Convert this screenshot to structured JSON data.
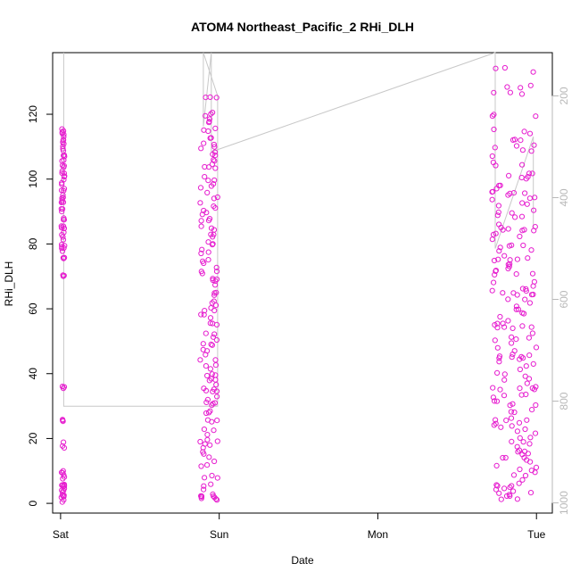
{
  "chart_data": {
    "type": "scatter",
    "title": "ATOM4 Northeast_Pacific_2 RHi_DLH",
    "xlabel": "Date",
    "ylabel": "RHi_DLH",
    "x_tick_labels": [
      "Sat",
      "Sun",
      "Mon",
      "Tue"
    ],
    "x_range_days": [
      -0.05,
      3.1
    ],
    "y_ticks": [
      0,
      20,
      40,
      60,
      80,
      100,
      120
    ],
    "ylim": [
      -3,
      139
    ],
    "secondary_axis": {
      "side": "right",
      "ticks": [
        200,
        400,
        600,
        800,
        1000
      ],
      "lim_top": 115,
      "lim_bottom": 1020,
      "inverted": true,
      "color": "#b8b8b8"
    },
    "grid": false,
    "legend": "none",
    "colors": {
      "points": "#e61ecf",
      "pressure_line": "#c8c8c8",
      "axes": "#000000"
    },
    "series": [
      {
        "marker": "open-circle",
        "clusters": [
          {
            "day_from": 0.005,
            "day_to": 0.025,
            "rhi_values": [
              1,
              2,
              3,
              4,
              5,
              6,
              8,
              10,
              18,
              26,
              36,
              70,
              76,
              78,
              80,
              82,
              84,
              86,
              88,
              90,
              92,
              94,
              96,
              98,
              100,
              102,
              104,
              106,
              108,
              110,
              112,
              114,
              115
            ]
          },
          {
            "day_from": 0.88,
            "day_to": 0.99,
            "rhi_values": [
              1,
              2,
              3,
              5,
              8,
              12,
              15,
              18,
              20,
              22,
              25,
              28,
              30,
              32,
              34,
              36,
              38,
              40,
              42,
              45,
              48,
              50,
              52,
              55,
              58,
              60,
              62,
              65,
              68,
              70,
              72,
              75,
              78,
              80,
              82,
              85,
              88,
              90,
              92,
              95,
              98,
              100,
              103,
              105,
              108,
              110,
              112,
              115,
              118,
              120,
              125
            ]
          },
          {
            "day_from": 2.72,
            "day_to": 3.0,
            "rhi_values": [
              2,
              3,
              4,
              5,
              6,
              8,
              10,
              12,
              14,
              15,
              16,
              18,
              20,
              22,
              24,
              25,
              26,
              28,
              30,
              32,
              34,
              35,
              36,
              38,
              40,
              42,
              44,
              45,
              46,
              48,
              50,
              52,
              54,
              55,
              56,
              58,
              60,
              62,
              64,
              65,
              66,
              68,
              70,
              72,
              74,
              75,
              76,
              78,
              80,
              82,
              84,
              85,
              86,
              88,
              90,
              92,
              94,
              95,
              96,
              98,
              100,
              102,
              105,
              108,
              110,
              112,
              115,
              120,
              126,
              129,
              134
            ]
          }
        ]
      }
    ],
    "pressure_trace": {
      "hpa": [
        115,
        810,
        810,
        200,
        115,
        260,
        115,
        310,
        115,
        500,
        280,
        460
      ],
      "days": [
        0.02,
        0.02,
        0.99,
        0.99,
        0.9,
        0.9,
        0.95,
        0.95,
        2.74,
        2.74,
        2.98,
        2.98
      ]
    }
  }
}
